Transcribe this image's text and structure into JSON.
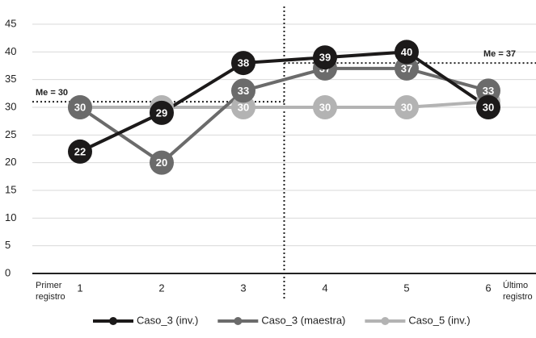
{
  "chart_data": {
    "type": "line",
    "categories": [
      "1",
      "2",
      "3",
      "4",
      "5",
      "6"
    ],
    "series": [
      {
        "name": "Caso_3 (inv.)",
        "color": "#1c1a1a",
        "values": [
          22,
          29,
          38,
          39,
          40,
          30
        ]
      },
      {
        "name": "Caso_3 (maestra)",
        "color": "#6b6b6b",
        "values": [
          30,
          20,
          33,
          37,
          37,
          33
        ]
      },
      {
        "name": "Caso_5 (inv.)",
        "color": "#b3b3b3",
        "values": [
          30,
          30,
          30,
          30,
          30,
          31
        ]
      }
    ],
    "ylim": [
      0,
      45
    ],
    "yticks": [
      0,
      5,
      10,
      15,
      20,
      25,
      30,
      35,
      40,
      45
    ],
    "grid": true,
    "legend": "bottom",
    "reference_lines": [
      {
        "label": "Me = 30",
        "y": 31,
        "side": "left"
      },
      {
        "label": "Me = 37",
        "y": 38,
        "side": "right"
      }
    ],
    "x_end_labels": {
      "left": [
        "Primer",
        "registro"
      ],
      "right": [
        "Último",
        "registro"
      ]
    }
  }
}
